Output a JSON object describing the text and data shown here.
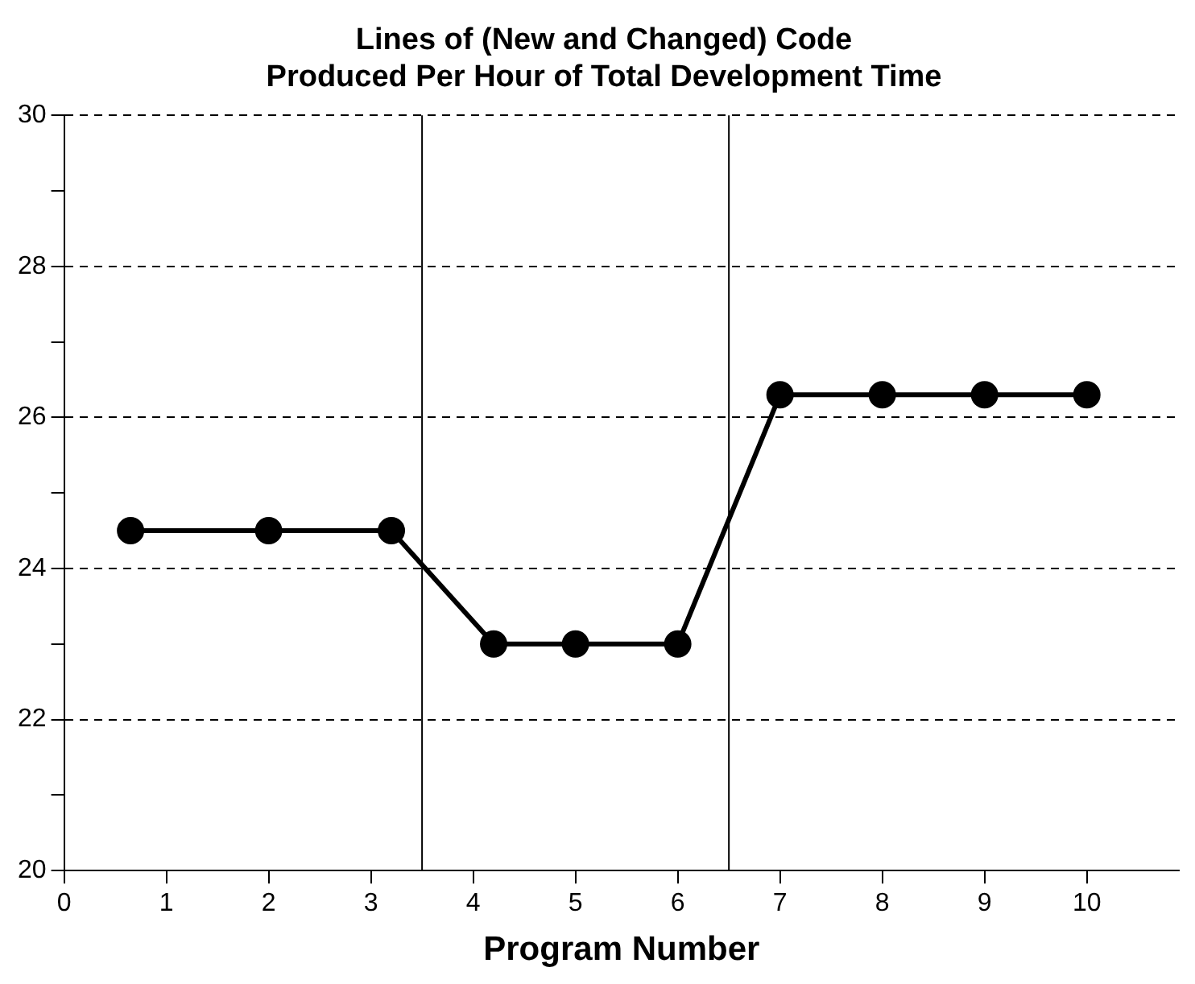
{
  "chart_data": {
    "type": "line",
    "title": "Lines of (New and Changed) Code\nProduced Per Hour of Total Development Time",
    "xlabel": "Program Number",
    "x": [
      0.65,
      2,
      3.2,
      4.2,
      5,
      6,
      7,
      8,
      9,
      10
    ],
    "values": [
      24.5,
      24.5,
      24.5,
      23,
      23,
      23,
      26.3,
      26.3,
      26.3,
      26.3
    ],
    "color": "#000000",
    "marker": "circle",
    "line_style": "solid",
    "xlim": [
      0,
      10.9
    ],
    "xticks": [
      0,
      1,
      2,
      3,
      4,
      5,
      6,
      7,
      8,
      9,
      10
    ],
    "ylim": [
      20,
      30
    ],
    "yticks": [
      20,
      {
        "value": 21,
        "label": null
      },
      22,
      {
        "value": 23,
        "label": null
      },
      24,
      {
        "value": 25,
        "label": null
      },
      26,
      {
        "value": 27,
        "label": null
      },
      28,
      {
        "value": 29,
        "label": null
      },
      30
    ],
    "grid": "y",
    "legend": false,
    "ref_lines": [
      {
        "axis": "x",
        "value": 3.5,
        "color": "#000000"
      },
      {
        "axis": "x",
        "value": 6.5,
        "color": "#000000"
      }
    ]
  }
}
